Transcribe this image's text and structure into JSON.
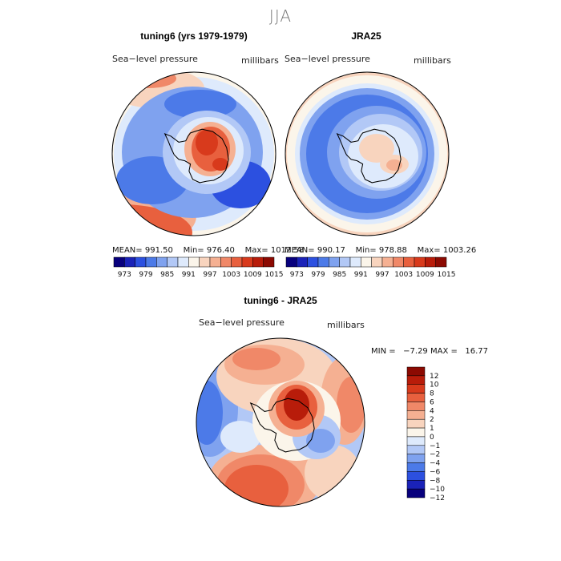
{
  "season": "JJA",
  "colors": {
    "palette": [
      "#08007d",
      "#1a22b8",
      "#2c50e0",
      "#4c7ae8",
      "#7fa2ef",
      "#b2c8f6",
      "#deeafc",
      "#fbf5ea",
      "#f8d4be",
      "#f5b092",
      "#f08868",
      "#e8603e",
      "#d83a1c",
      "#b81c0a",
      "#8c0a02"
    ],
    "outline": "#000000",
    "text": "#000000"
  },
  "panels": [
    {
      "title": "tuning6 (yrs 1979-1979)",
      "field_label": "Sea−level pressure",
      "units_label": "millibars",
      "stats": {
        "mean_label": "MEAN=",
        "mean": "991.50",
        "min_label": "Min=",
        "min": "976.40",
        "max_label": "Max=",
        "max": "1012.58"
      }
    },
    {
      "title": "JRA25",
      "field_label": "Sea−level pressure",
      "units_label": "millibars",
      "stats": {
        "mean_label": "MEAN=",
        "mean": "990.17",
        "min_label": "Min=",
        "min": "978.88",
        "max_label": "Max=",
        "max": "1003.26"
      }
    }
  ],
  "diff_panel": {
    "title": "tuning6 - JRA25",
    "field_label": "Sea−level pressure",
    "units_label": "millibars",
    "minmax": "MIN =   −7.29 MAX =   16.77"
  },
  "chart_data": [
    {
      "type": "heatmap",
      "projection": "south-polar-stereographic",
      "title": "tuning6 (yrs 1979-1979)",
      "variable": "Sea-level pressure",
      "units": "millibars",
      "stats": {
        "mean": 991.5,
        "min": 976.4,
        "max": 1012.58
      },
      "colorbar_levels": [
        973,
        976,
        979,
        982,
        985,
        988,
        991,
        994,
        997,
        1000,
        1003,
        1006,
        1009,
        1012,
        1015
      ],
      "colorbar_tick_labels": [
        "973",
        "979",
        "985",
        "991",
        "997",
        "1003",
        "1009",
        "1015"
      ]
    },
    {
      "type": "heatmap",
      "projection": "south-polar-stereographic",
      "title": "JRA25",
      "variable": "Sea-level pressure",
      "units": "millibars",
      "stats": {
        "mean": 990.17,
        "min": 978.88,
        "max": 1003.26
      },
      "colorbar_levels": [
        973,
        976,
        979,
        982,
        985,
        988,
        991,
        994,
        997,
        1000,
        1003,
        1006,
        1009,
        1012,
        1015
      ],
      "colorbar_tick_labels": [
        "973",
        "979",
        "985",
        "991",
        "997",
        "1003",
        "1009",
        "1015"
      ]
    },
    {
      "type": "heatmap",
      "projection": "south-polar-stereographic",
      "title": "tuning6 - JRA25",
      "variable": "Sea-level pressure",
      "units": "millibars",
      "stats": {
        "min": -7.29,
        "max": 16.77
      },
      "colorbar_levels": [
        -12,
        -10,
        -8,
        -6,
        -4,
        -2,
        -1,
        0,
        1,
        2,
        4,
        6,
        8,
        10,
        12
      ],
      "colorbar_tick_labels": [
        "12",
        "10",
        "8",
        "6",
        "4",
        "2",
        "1",
        "0",
        "−1",
        "−2",
        "−4",
        "−6",
        "−8",
        "−10",
        "−12"
      ]
    }
  ]
}
